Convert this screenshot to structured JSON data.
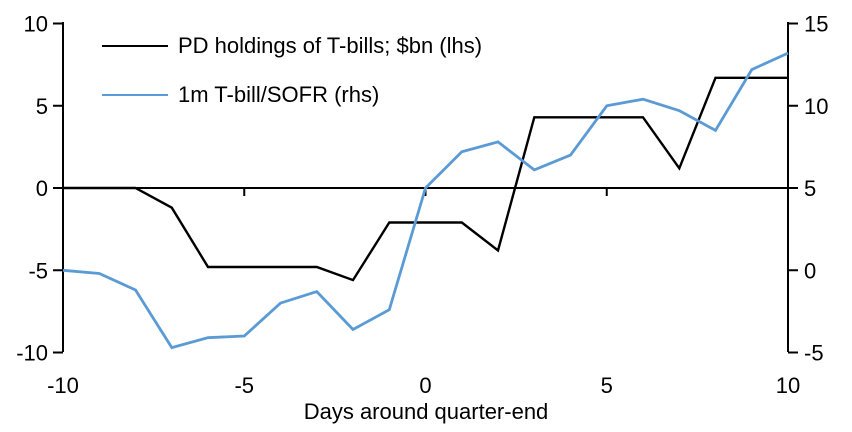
{
  "chart_data": {
    "type": "line",
    "title": "",
    "xlabel": "Days around quarter-end",
    "x": [
      -10,
      -9,
      -8,
      -7,
      -6,
      -5,
      -4,
      -3,
      -2,
      -1,
      0,
      1,
      2,
      3,
      4,
      5,
      6,
      7,
      8,
      9,
      10
    ],
    "series": [
      {
        "name": "PD holdings of T-bills; $bn (lhs)",
        "axis": "lhs",
        "color": "#000000",
        "stroke_width": 2.4,
        "values": [
          0,
          0,
          0,
          -1.2,
          -4.8,
          -4.8,
          -4.8,
          -4.8,
          -5.6,
          -2.1,
          -2.1,
          -2.1,
          -3.8,
          4.3,
          4.3,
          4.3,
          4.3,
          1.2,
          6.7,
          6.7,
          6.7
        ]
      },
      {
        "name": "1m T-bill/SOFR (rhs)",
        "axis": "rhs",
        "color": "#5B9BD5",
        "stroke_width": 2.8,
        "values": [
          0,
          -0.2,
          -1.2,
          -4.7,
          -4.1,
          -4.0,
          -2.0,
          -1.3,
          -3.6,
          -2.4,
          5.0,
          7.2,
          7.8,
          6.1,
          7.0,
          10.0,
          10.4,
          9.7,
          8.5,
          12.2,
          13.2
        ]
      }
    ],
    "left_axis": {
      "ticks": [
        10,
        5,
        0,
        -5,
        -10
      ],
      "lim": [
        -10,
        10
      ]
    },
    "right_axis": {
      "ticks": [
        15,
        10,
        5,
        0,
        -5
      ],
      "lim": [
        -5,
        15
      ]
    },
    "x_ticks": [
      -10,
      -5,
      0,
      5,
      10
    ],
    "xlim": [
      -10,
      10
    ],
    "legend_position": "top-left",
    "grid": false,
    "zero_line": true,
    "axis_color": "#000000"
  }
}
